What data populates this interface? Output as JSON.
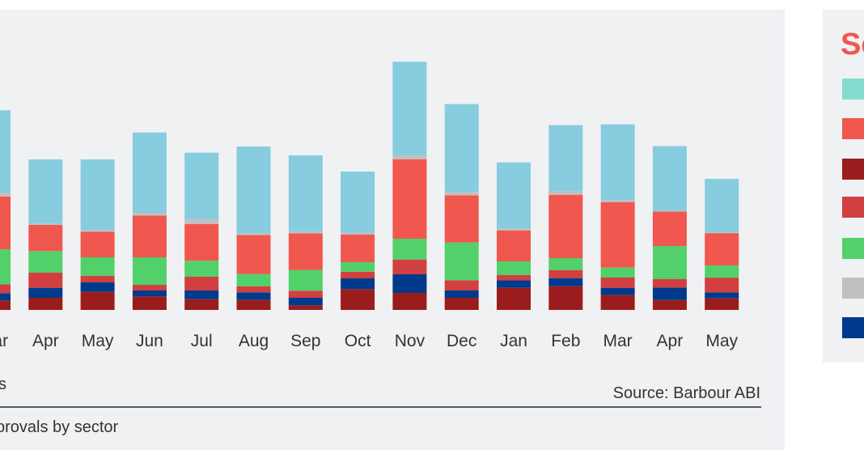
{
  "chart_data": {
    "type": "stacked-bar",
    "categories": [
      "Mar",
      "Apr",
      "May",
      "Jun",
      "Jul",
      "Aug",
      "Sep",
      "Oct",
      "Nov",
      "Dec",
      "Jan",
      "Feb",
      "Mar",
      "Apr",
      "May"
    ],
    "series": [
      {
        "color": "#9b1c1c",
        "values": [
          11.7,
          15,
          22.3,
          16.7,
          13.3,
          12.3,
          5.7,
          25.7,
          21,
          15,
          27.3,
          29.3,
          18.3,
          12.3,
          14.3
        ]
      },
      {
        "color": "#003a8c",
        "values": [
          9,
          12.3,
          11.7,
          7.3,
          10.7,
          9.3,
          9.3,
          13.3,
          23,
          9,
          9.3,
          10,
          9,
          15.3,
          7.3
        ]
      },
      {
        "color": "#d13f40",
        "values": [
          11,
          18.7,
          8.3,
          7,
          17,
          7.7,
          8.7,
          8.3,
          18.3,
          12.7,
          6.7,
          10,
          12.7,
          10.7,
          18.3
        ]
      },
      {
        "color": "#52d16a",
        "values": [
          43.3,
          26.7,
          22.7,
          34,
          19.7,
          15,
          25.7,
          11.7,
          25.7,
          46.7,
          16.7,
          14.7,
          12.3,
          40.7,
          15
        ]
      },
      {
        "color": "#f0574e",
        "values": [
          65,
          32.3,
          31.7,
          51.7,
          45.3,
          48.3,
          45.3,
          34.3,
          98.3,
          58.3,
          38.3,
          78.3,
          81,
          42.7,
          40
        ]
      },
      {
        "color": "#c0c0c0",
        "values": [
          5,
          1.7,
          2.3,
          3.3,
          6.3,
          2,
          2,
          2,
          4.7,
          4,
          2.3,
          4.3,
          2.3,
          0.7,
          1
        ]
      },
      {
        "color": "#87ccdf",
        "values": [
          101.7,
          79.3,
          87,
          99.3,
          82,
          107.3,
          94.3,
          75.7,
          115.7,
          108.7,
          81.7,
          81.7,
          93.7,
          80,
          66
        ]
      }
    ],
    "grid": false,
    "legend": "right",
    "source": "Source: Barbour ABI"
  },
  "legend": {
    "title": "Se",
    "swatches": [
      "#84dccf",
      "#f0574e",
      "#9b1c1c",
      "#d13f40",
      "#52d16a",
      "#c0c0c0",
      "#003a8c"
    ]
  },
  "footer": {
    "left_fragment": "s",
    "source": "Source: Barbour ABI",
    "caption": "provals by sector"
  }
}
